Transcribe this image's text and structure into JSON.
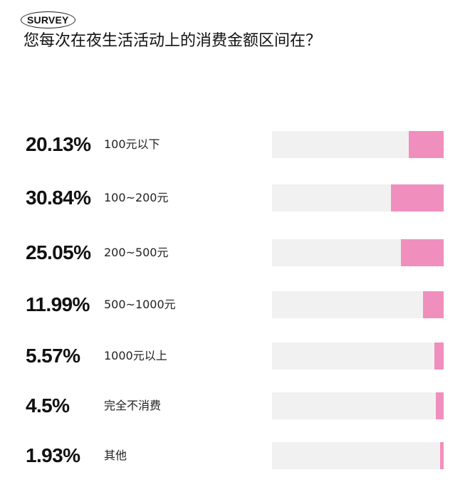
{
  "badge": "SURVEY",
  "title": "您每次在夜生活活动上的消费金额区间在？",
  "chart_data": {
    "type": "bar",
    "orientation": "horizontal",
    "categories": [
      "100元以下",
      "100~200元",
      "200~500元",
      "500~1000元",
      "1000元以上",
      "完全不消费",
      "其他"
    ],
    "values": [
      20.13,
      30.84,
      25.05,
      11.99,
      5.57,
      4.5,
      1.93
    ],
    "value_labels": [
      "20.13%",
      "30.84%",
      "25.05%",
      "11.99%",
      "5.57%",
      "4.5%",
      "1.93%"
    ],
    "unit": "%",
    "bar_color": "#f08fbe",
    "track_color": "#f1f1f1",
    "xlim": [
      0,
      100
    ],
    "fill_direction": "right-to-left",
    "grid": false
  }
}
